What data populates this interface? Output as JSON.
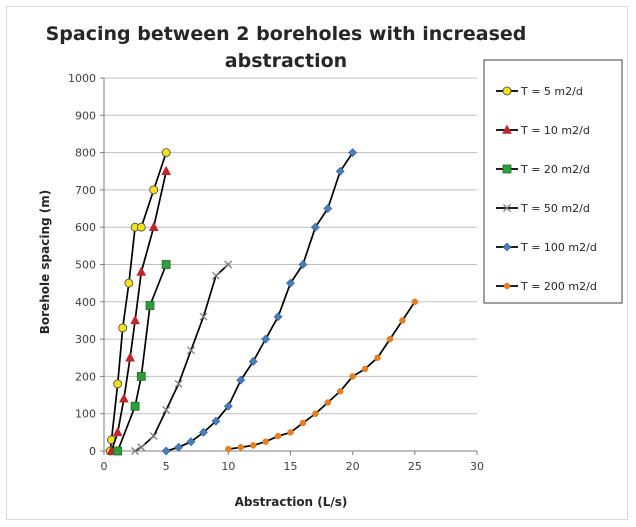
{
  "chart_data": {
    "type": "line",
    "title_lines": [
      "Spacing between 2 boreholes with increased",
      "abstraction"
    ],
    "xlabel": "Abstraction (L/s)",
    "ylabel": "Borehole spacing (m)",
    "xlim": [
      0,
      30
    ],
    "ylim": [
      0,
      1000
    ],
    "xticks": [
      0,
      5,
      10,
      15,
      20,
      25,
      30
    ],
    "yticks": [
      0,
      100,
      200,
      300,
      400,
      500,
      600,
      700,
      800,
      900,
      1000
    ],
    "grid": "horizontal",
    "legend_position": "right",
    "series": [
      {
        "name": "T = 5 m2/d",
        "color": "#f5e11b",
        "marker": "circle",
        "points": [
          [
            0.5,
            0
          ],
          [
            0.6,
            30
          ],
          [
            1.1,
            180
          ],
          [
            1.5,
            330
          ],
          [
            2.0,
            450
          ],
          [
            2.5,
            600
          ],
          [
            3.0,
            600
          ],
          [
            4.0,
            700
          ],
          [
            5.0,
            800
          ]
        ]
      },
      {
        "name": "T = 10 m2/d",
        "color": "#c0272d",
        "marker": "triangle",
        "points": [
          [
            0.6,
            0
          ],
          [
            1.1,
            50
          ],
          [
            1.6,
            140
          ],
          [
            2.1,
            250
          ],
          [
            2.5,
            350
          ],
          [
            3.0,
            480
          ],
          [
            4.0,
            600
          ],
          [
            5.0,
            750
          ]
        ]
      },
      {
        "name": "T = 20 m2/d",
        "color": "#2e9e3a",
        "marker": "square",
        "points": [
          [
            1.1,
            0
          ],
          [
            2.5,
            120
          ],
          [
            3.0,
            200
          ],
          [
            3.7,
            390
          ],
          [
            5.0,
            500
          ]
        ]
      },
      {
        "name": "T = 50 m2/d",
        "color": "#7f7f7f",
        "marker": "x",
        "points": [
          [
            2.5,
            0
          ],
          [
            3.0,
            10
          ],
          [
            4.0,
            40
          ],
          [
            5.0,
            110
          ],
          [
            6.0,
            180
          ],
          [
            7.0,
            270
          ],
          [
            8.0,
            360
          ],
          [
            9.0,
            470
          ],
          [
            10.0,
            500
          ]
        ]
      },
      {
        "name": "T = 100 m2/d",
        "color": "#4a7ebb",
        "marker": "diamond",
        "points": [
          [
            5.0,
            0
          ],
          [
            6.0,
            10
          ],
          [
            7.0,
            25
          ],
          [
            8.0,
            50
          ],
          [
            9.0,
            80
          ],
          [
            10.0,
            120
          ],
          [
            11.0,
            190
          ],
          [
            12.0,
            240
          ],
          [
            13.0,
            300
          ],
          [
            14.0,
            360
          ],
          [
            15.0,
            450
          ],
          [
            16.0,
            500
          ],
          [
            17.0,
            600
          ],
          [
            18.0,
            650
          ],
          [
            19.0,
            750
          ],
          [
            20.0,
            800
          ]
        ]
      },
      {
        "name": "T = 200 m2/d",
        "color": "#e67e22",
        "marker": "circle-small",
        "points": [
          [
            10.0,
            5
          ],
          [
            11.0,
            10
          ],
          [
            12.0,
            15
          ],
          [
            13.0,
            25
          ],
          [
            14.0,
            40
          ],
          [
            15.0,
            50
          ],
          [
            16.0,
            75
          ],
          [
            17.0,
            100
          ],
          [
            18.0,
            130
          ],
          [
            19.0,
            160
          ],
          [
            20.0,
            200
          ],
          [
            21.0,
            220
          ],
          [
            22.0,
            250
          ],
          [
            23.0,
            300
          ],
          [
            24.0,
            350
          ],
          [
            25.0,
            400
          ]
        ]
      }
    ]
  }
}
